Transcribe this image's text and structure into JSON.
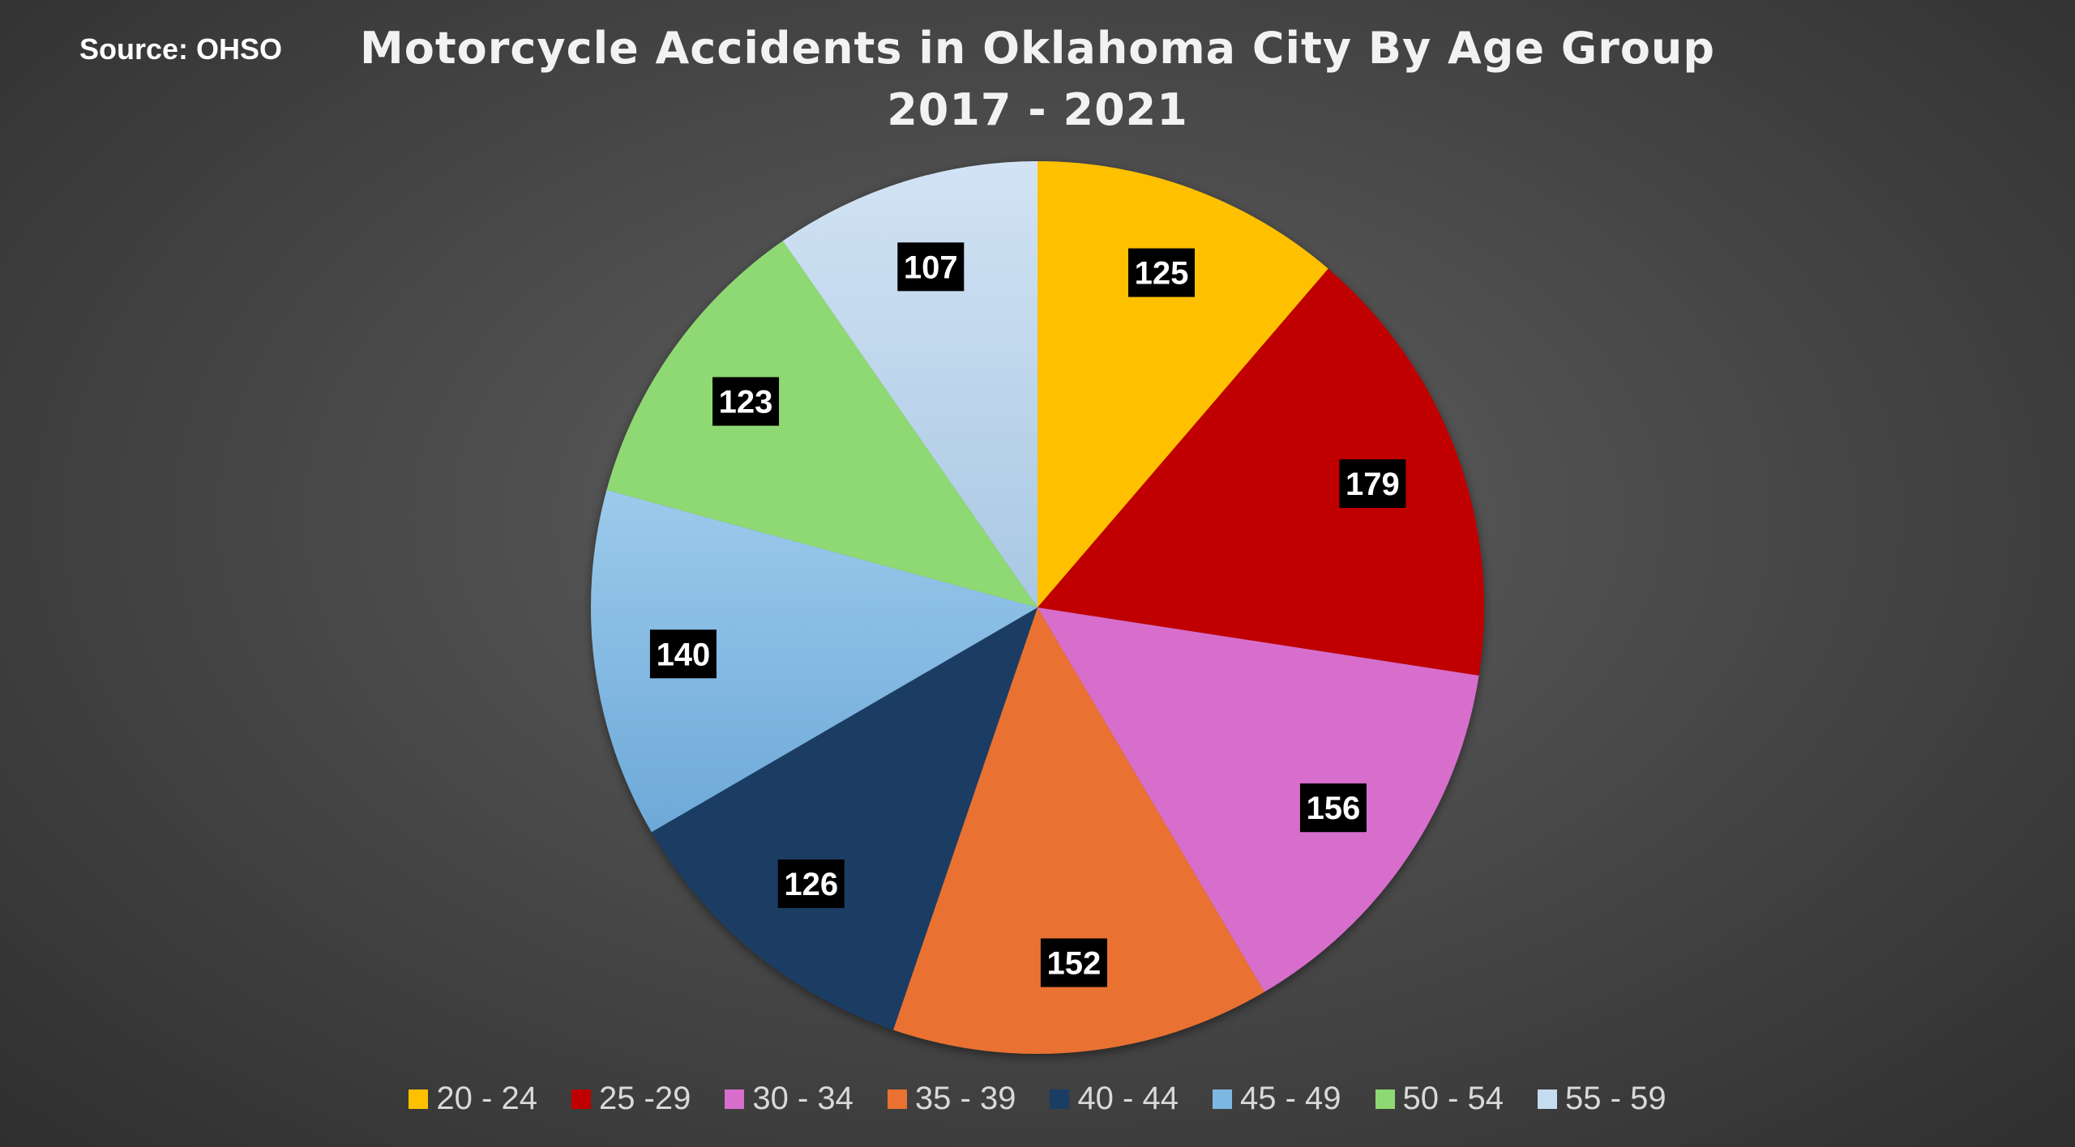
{
  "source": "Source: OHSO",
  "chart_data": {
    "type": "pie",
    "title": "Motorcycle Accidents in Oklahoma City By Age Group",
    "subtitle": "2017 - 2021",
    "categories": [
      "20 - 24",
      "25 -29",
      "30 - 34",
      "35 - 39",
      "40 - 44",
      "45 - 49",
      "50 - 54",
      "55 - 59"
    ],
    "values": [
      125,
      179,
      156,
      152,
      126,
      140,
      123,
      107
    ],
    "colors": [
      "#FFC000",
      "#C00000",
      "#D86ECC",
      "#E97132",
      "#1A3D64",
      "#7DB8E2",
      "#8ED973",
      "#C5DCF0"
    ],
    "data_labels": [
      "125",
      "179",
      "156",
      "152",
      "126",
      "140",
      "123",
      "107"
    ],
    "legend_position": "bottom",
    "start_angle": "12 o'clock",
    "direction": "clockwise"
  }
}
